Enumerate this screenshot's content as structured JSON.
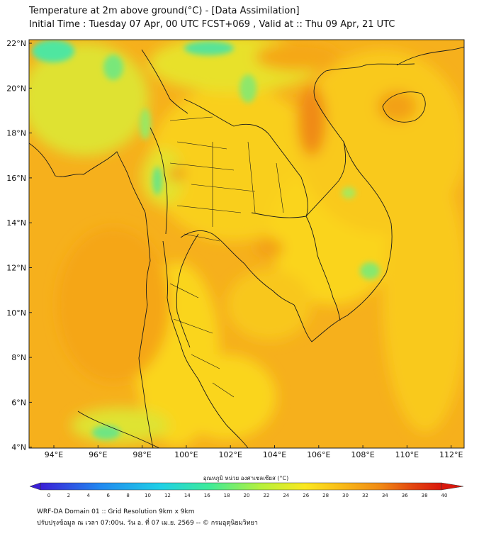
{
  "header": {
    "title_line1": "Temperature at 2m above ground(°C) - [Data Assimilation]",
    "title_line2": "Initial Time : Tuesday 07 Apr, 00 UTC FCST+069 , Valid at :: Thu 09 Apr, 21 UTC"
  },
  "map": {
    "lat_labels": [
      "22°N",
      "20°N",
      "18°N",
      "16°N",
      "14°N",
      "12°N",
      "10°N",
      "8°N",
      "6°N",
      "4°N"
    ],
    "lon_labels": [
      "94°E",
      "96°E",
      "98°E",
      "100°E",
      "102°E",
      "104°E",
      "106°E",
      "108°E",
      "110°E",
      "112°E"
    ],
    "background_color": "#f6b31d"
  },
  "colorbar": {
    "label": "อุณหภูมิ หน่วย องศาเซลเซียส (°C)",
    "ticks": [
      "0",
      "2",
      "4",
      "6",
      "8",
      "10",
      "12",
      "14",
      "16",
      "18",
      "20",
      "22",
      "24",
      "26",
      "28",
      "30",
      "32",
      "34",
      "36",
      "38",
      "40"
    ],
    "colors": [
      "#3b1fd6",
      "#3341e0",
      "#2b66e8",
      "#2489f0",
      "#1eaef4",
      "#1fcde8",
      "#24e3d0",
      "#2fe9b0",
      "#49ed8c",
      "#72ef6a",
      "#9cf04e",
      "#c4f238",
      "#e6f22a",
      "#fbe81f",
      "#fdd21a",
      "#f9bb18",
      "#f5a316",
      "#f08814",
      "#ea6a12",
      "#e2440f",
      "#d9170c"
    ]
  },
  "footer": {
    "line1": "WRF-DA Domain 01 :: Grid Resolution 9km x 9km",
    "line2": "ปรับปรุงข้อมูล ณ เวลา 07:00น. วัน อ. ที่ 07 เม.ย. 2569 -- © กรมอุตุนิยมวิทยา"
  }
}
